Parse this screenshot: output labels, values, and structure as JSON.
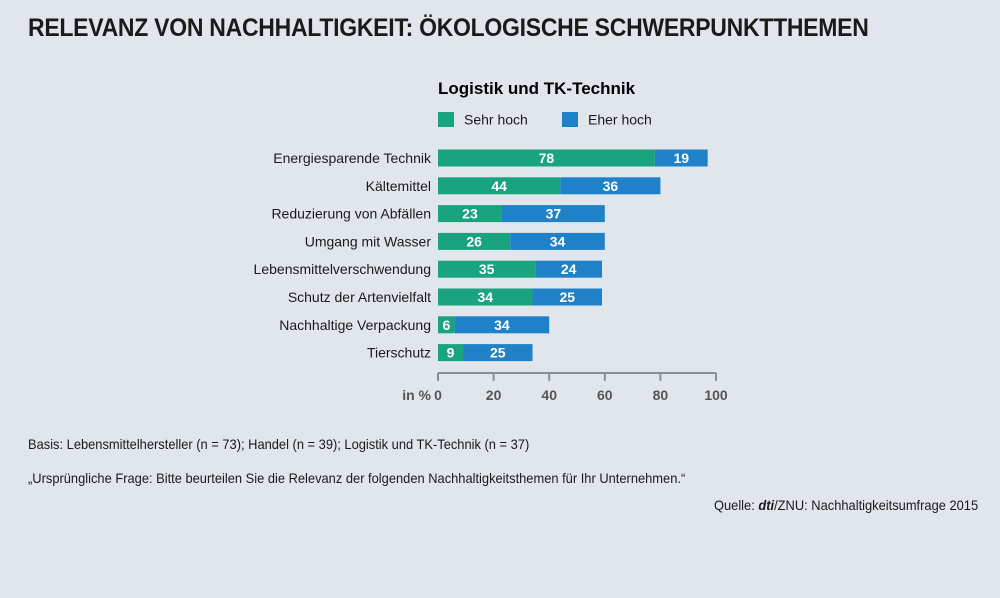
{
  "title": "RELEVANZ VON NACHHALTIGKEIT: ÖKOLOGISCHE SCHWERPUNKTTHEMEN",
  "notes": {
    "basis": "Basis: Lebensmittelhersteller (n = 73); Handel (n = 39); Logistik und TK-Technik (n = 37)",
    "question": "„Ursprüngliche Frage: Bitte beurteilen Sie die Relevanz der folgenden Nachhaltigkeitsthemen für Ihr Unternehmen.“",
    "source_prefix": "Quelle: ",
    "source_brand": "dti",
    "source_suffix": "/ZNU: Nachhaltigkeitsumfrage 2015"
  },
  "colors": {
    "sehr_hoch": "#1aa37f",
    "eher_hoch": "#1f82c9",
    "axis": "#8a8f96"
  },
  "chart_data": {
    "type": "bar",
    "orientation": "horizontal",
    "stacked": true,
    "subtitle": "Logistik und TK-Technik",
    "categories": [
      "Energiesparende Technik",
      "Kältemittel",
      "Reduzierung von Abfällen",
      "Umgang mit Wasser",
      "Lebensmittelverschwendung",
      "Schutz der Artenvielfalt",
      "Nachhaltige Verpackung",
      "Tierschutz"
    ],
    "series": [
      {
        "name": "Sehr hoch",
        "values": [
          78,
          44,
          23,
          26,
          35,
          34,
          6,
          9
        ]
      },
      {
        "name": "Eher hoch",
        "values": [
          19,
          36,
          37,
          34,
          24,
          25,
          34,
          25
        ]
      }
    ],
    "xlabel": "in %",
    "xlim": [
      0,
      100
    ],
    "ticks": [
      0,
      20,
      40,
      60,
      80,
      100
    ],
    "legend": "top",
    "grid": false
  }
}
